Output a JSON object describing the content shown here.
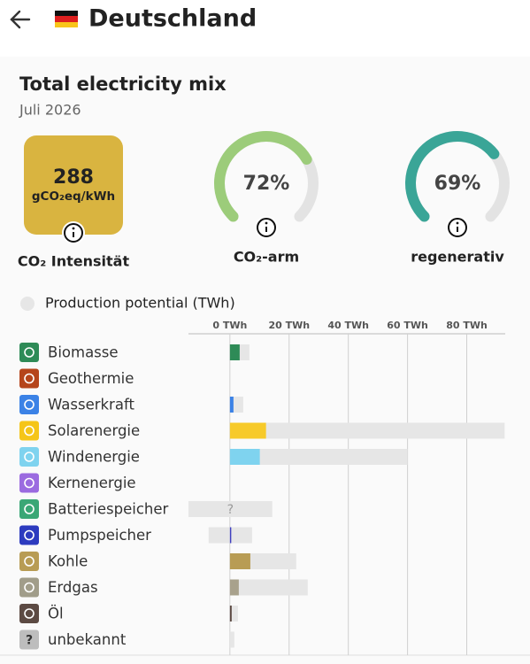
{
  "header": {
    "title": "Deutschland"
  },
  "summary": {
    "title": "Total electricity mix",
    "subtitle": "Juli 2026",
    "intensity": {
      "value": 288,
      "unit": "gCO₂eq/kWh",
      "label": "CO₂ Intensität",
      "color": "#d9b440"
    },
    "gauges": [
      {
        "value": 72,
        "value_label": "72%",
        "label": "CO₂-arm",
        "color": "#9ccc7a",
        "range": [
          0,
          100
        ]
      },
      {
        "value": 69,
        "value_label": "69%",
        "label": "regenerativ",
        "color": "#3aa597",
        "range": [
          0,
          100
        ]
      }
    ]
  },
  "chart_data": {
    "type": "bar",
    "orientation": "horizontal",
    "categories": [
      "Biomasse",
      "Geothermie",
      "Wasserkraft",
      "Solarenergie",
      "Windenergie",
      "Kernenergie",
      "Batteriespeicher",
      "Pumpspeicher",
      "Kohle",
      "Erdgas",
      "Öl",
      "unbekannt"
    ],
    "icon_colors": [
      "#2e8b57",
      "#b5451b",
      "#3b82e6",
      "#f5c518",
      "#7fd3ef",
      "#9b6be0",
      "#3aa776",
      "#2d3bbf",
      "#b89c54",
      "#a19d8a",
      "#5c4a43",
      "#bdbdbd"
    ],
    "icon_labels": [
      null,
      null,
      null,
      null,
      null,
      null,
      null,
      null,
      null,
      null,
      null,
      "?"
    ],
    "production": {
      "colors": [
        "#2e8b57",
        "#b5451b",
        "#3b82e6",
        "#f7ca2a",
        "#7fd3ef",
        "#9b6be0",
        "#3aa776",
        "#3f3fbf",
        "#b89c54",
        "#a8a18c",
        "#5c4a43",
        "#bdbdbd"
      ],
      "values": [
        3.3,
        null,
        1.2,
        12.2,
        10.1,
        null,
        null,
        0.2,
        6.9,
        3.0,
        0.6,
        null
      ]
    },
    "series": [
      {
        "name": "Production potential (TWh)",
        "color": "#e6e6e6",
        "values": [
          [
            0,
            6.6
          ],
          null,
          [
            0,
            4.5
          ],
          [
            0,
            92.8
          ],
          [
            0,
            60
          ],
          null,
          [
            -14,
            14.3
          ],
          [
            -7.2,
            7.5
          ],
          [
            0,
            22.4
          ],
          [
            0,
            26.3
          ],
          [
            0,
            2.7
          ],
          [
            0,
            1.5
          ]
        ],
        "value_labels": [
          null,
          null,
          null,
          null,
          null,
          null,
          "?",
          null,
          null,
          null,
          null,
          null
        ]
      }
    ],
    "xlim": [
      -14,
      93
    ],
    "xticks": [
      {
        "value": 0,
        "label": "0 TWh"
      },
      {
        "value": 20,
        "label": "20 TWh"
      },
      {
        "value": 40,
        "label": "40 TWh"
      },
      {
        "value": 60,
        "label": "60 TWh"
      },
      {
        "value": 80,
        "label": "80 TWh"
      }
    ],
    "grid": true
  }
}
